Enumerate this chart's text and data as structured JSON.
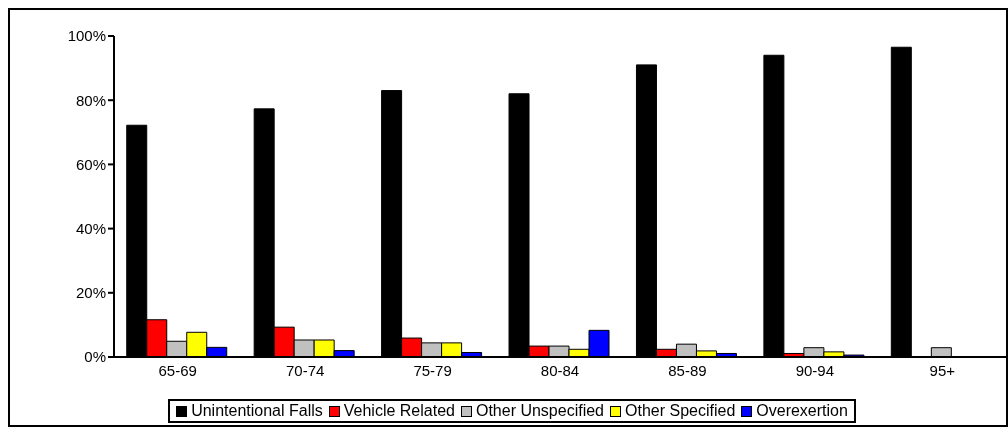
{
  "chart_data": {
    "type": "bar",
    "categories": [
      "65-69",
      "70-74",
      "75-79",
      "80-84",
      "85-89",
      "90-94",
      "95+"
    ],
    "series": [
      {
        "name": "Unintentional Falls",
        "color": "#000000",
        "values": [
          72.2,
          77.3,
          83,
          82,
          91,
          94,
          96.5
        ]
      },
      {
        "name": "Vehicle Related",
        "color": "#ff0000",
        "values": [
          11.6,
          9.3,
          5.9,
          3.4,
          2.4,
          1.1,
          null
        ]
      },
      {
        "name": "Other Unspecified",
        "color": "#c0c0c0",
        "values": [
          4.9,
          5.3,
          4.4,
          3.4,
          4,
          2.9,
          2.9
        ]
      },
      {
        "name": "Other Specified",
        "color": "#ffff00",
        "values": [
          7.7,
          5.3,
          4.4,
          2.4,
          1.9,
          1.6,
          null
        ]
      },
      {
        "name": "Overexertion",
        "color": "#0000ff",
        "values": [
          3,
          2,
          1.4,
          8.3,
          1.1,
          0.6,
          null
        ]
      }
    ],
    "ylim": [
      0,
      100
    ],
    "yticks": [
      {
        "value": 0,
        "label": "0%"
      },
      {
        "value": 20,
        "label": "20%"
      },
      {
        "value": 40,
        "label": "40%"
      },
      {
        "value": 60,
        "label": "60%"
      },
      {
        "value": 80,
        "label": "80%"
      },
      {
        "value": 100,
        "label": "100%"
      }
    ],
    "grid": false,
    "legend": "bottom"
  }
}
